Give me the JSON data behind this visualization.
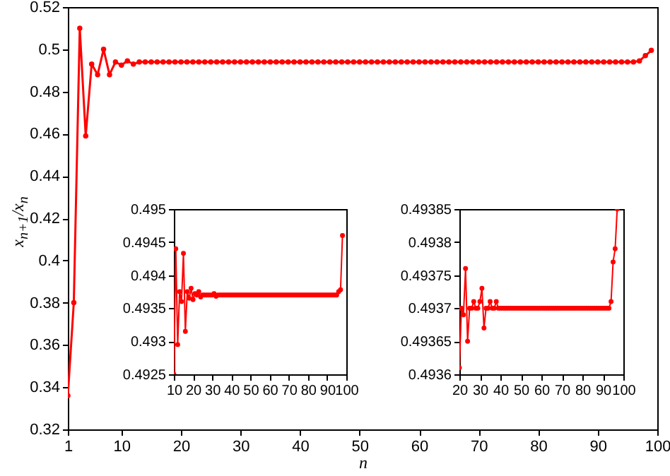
{
  "chart_data": [
    {
      "type": "line",
      "xlabel": "n",
      "ylabel": "x$_{n+1}$/x$_{n}$",
      "xlim": [
        1,
        100
      ],
      "ylim": [
        0.32,
        0.52
      ],
      "xticks": [
        1,
        10,
        20,
        30,
        40,
        50,
        60,
        70,
        80,
        90,
        100
      ],
      "yticks": [
        0.32,
        0.34,
        0.36,
        0.38,
        0.4,
        0.42,
        0.44,
        0.46,
        0.48,
        0.5,
        0.52
      ],
      "grid": false,
      "marker": "circle",
      "series": [
        {
          "color": "#ff0000",
          "x": [
            1,
            2,
            3,
            4,
            5,
            6,
            7,
            8,
            9,
            10,
            11,
            12,
            13,
            14,
            15,
            16,
            17,
            18,
            19,
            20,
            21,
            22,
            23,
            24,
            25,
            26,
            27,
            28,
            29,
            30,
            31,
            32,
            33,
            34,
            35,
            36,
            37,
            38,
            39,
            40,
            41,
            42,
            43,
            44,
            45,
            46,
            47,
            48,
            49,
            50,
            51,
            52,
            53,
            54,
            55,
            56,
            57,
            58,
            59,
            60,
            61,
            62,
            63,
            64,
            65,
            66,
            67,
            68,
            69,
            70,
            71,
            72,
            73,
            74,
            75,
            76,
            77,
            78,
            79,
            80,
            81,
            82,
            83,
            84,
            85,
            86,
            87,
            88,
            89,
            90,
            91,
            92,
            93,
            94,
            95,
            96,
            97,
            98,
            99
          ],
          "values": [
            0.336,
            0.38,
            0.51,
            0.459,
            0.493,
            0.488,
            0.5,
            0.488,
            0.494,
            0.4925,
            0.4945,
            0.493,
            0.494,
            0.494,
            0.494,
            0.494,
            0.494,
            0.494,
            0.494,
            0.494,
            0.494,
            0.494,
            0.494,
            0.494,
            0.494,
            0.494,
            0.494,
            0.494,
            0.494,
            0.494,
            0.494,
            0.494,
            0.494,
            0.494,
            0.494,
            0.494,
            0.494,
            0.494,
            0.494,
            0.494,
            0.494,
            0.494,
            0.494,
            0.494,
            0.494,
            0.494,
            0.494,
            0.494,
            0.494,
            0.494,
            0.494,
            0.494,
            0.494,
            0.494,
            0.494,
            0.494,
            0.494,
            0.494,
            0.494,
            0.494,
            0.494,
            0.494,
            0.494,
            0.494,
            0.494,
            0.494,
            0.494,
            0.494,
            0.494,
            0.494,
            0.494,
            0.494,
            0.494,
            0.494,
            0.494,
            0.494,
            0.494,
            0.494,
            0.494,
            0.494,
            0.494,
            0.494,
            0.494,
            0.494,
            0.494,
            0.494,
            0.494,
            0.494,
            0.494,
            0.494,
            0.494,
            0.494,
            0.494,
            0.494,
            0.494,
            0.494,
            0.4945,
            0.497,
            0.4995
          ]
        }
      ]
    },
    {
      "type": "line",
      "xlim": [
        10,
        100
      ],
      "ylim": [
        0.4925,
        0.495
      ],
      "xticks": [
        10,
        20,
        30,
        40,
        50,
        60,
        70,
        80,
        90,
        100
      ],
      "yticks": [
        0.4925,
        0.493,
        0.4935,
        0.494,
        0.4945,
        0.495
      ],
      "grid": false,
      "marker": "circle",
      "series": [
        {
          "color": "#ff0000",
          "x": [
            10,
            11,
            12,
            13,
            14,
            15,
            16,
            17,
            18,
            19,
            20,
            21,
            22,
            23,
            24,
            25,
            26,
            27,
            28,
            29,
            30,
            31,
            32,
            33,
            34,
            35,
            36,
            37,
            38,
            39,
            40,
            41,
            42,
            43,
            44,
            45,
            46,
            47,
            48,
            49,
            50,
            51,
            52,
            53,
            54,
            55,
            56,
            57,
            58,
            59,
            60,
            61,
            62,
            63,
            64,
            65,
            66,
            67,
            68,
            69,
            70,
            71,
            72,
            73,
            74,
            75,
            76,
            77,
            78,
            79,
            80,
            81,
            82,
            83,
            84,
            85,
            86,
            87,
            88,
            89,
            90,
            91,
            92,
            93,
            94,
            95,
            96,
            97,
            98
          ],
          "values": [
            0.4925,
            0.4944,
            0.49295,
            0.49375,
            0.4936,
            0.49433,
            0.49315,
            0.49375,
            0.49365,
            0.4938,
            0.49363,
            0.49372,
            0.4937,
            0.49375,
            0.49367,
            0.4937,
            0.4937,
            0.4937,
            0.4937,
            0.4937,
            0.4937,
            0.49372,
            0.49368,
            0.4937,
            0.4937,
            0.4937,
            0.4937,
            0.4937,
            0.4937,
            0.4937,
            0.4937,
            0.4937,
            0.4937,
            0.4937,
            0.4937,
            0.4937,
            0.4937,
            0.4937,
            0.4937,
            0.4937,
            0.4937,
            0.4937,
            0.4937,
            0.4937,
            0.4937,
            0.4937,
            0.4937,
            0.4937,
            0.4937,
            0.4937,
            0.4937,
            0.4937,
            0.4937,
            0.4937,
            0.4937,
            0.4937,
            0.4937,
            0.4937,
            0.4937,
            0.4937,
            0.4937,
            0.4937,
            0.4937,
            0.4937,
            0.4937,
            0.4937,
            0.4937,
            0.4937,
            0.4937,
            0.4937,
            0.4937,
            0.4937,
            0.4937,
            0.4937,
            0.4937,
            0.4937,
            0.4937,
            0.4937,
            0.4937,
            0.4937,
            0.4937,
            0.4937,
            0.4937,
            0.4937,
            0.4937,
            0.4937,
            0.49375,
            0.49378,
            0.4946
          ]
        }
      ]
    },
    {
      "type": "line",
      "xlim": [
        20,
        100
      ],
      "ylim": [
        0.4936,
        0.49385
      ],
      "xticks": [
        20,
        30,
        40,
        50,
        60,
        70,
        80,
        90,
        100
      ],
      "yticks": [
        0.4936,
        0.49365,
        0.4937,
        0.49375,
        0.4938,
        0.49385
      ],
      "grid": false,
      "marker": "circle",
      "series": [
        {
          "color": "#ff0000",
          "x": [
            20,
            21,
            22,
            23,
            24,
            25,
            26,
            27,
            28,
            29,
            30,
            31,
            32,
            33,
            34,
            35,
            36,
            37,
            38,
            39,
            40,
            41,
            42,
            43,
            44,
            45,
            46,
            47,
            48,
            49,
            50,
            51,
            52,
            53,
            54,
            55,
            56,
            57,
            58,
            59,
            60,
            61,
            62,
            63,
            64,
            65,
            66,
            67,
            68,
            69,
            70,
            71,
            72,
            73,
            74,
            75,
            76,
            77,
            78,
            79,
            80,
            81,
            82,
            83,
            84,
            85,
            86,
            87,
            88,
            89,
            90,
            91,
            92,
            93,
            94,
            95,
            96,
            97
          ],
          "values": [
            0.49361,
            0.4937,
            0.49369,
            0.49376,
            0.49365,
            0.4937,
            0.4937,
            0.49371,
            0.4937,
            0.4937,
            0.49371,
            0.49373,
            0.49367,
            0.4937,
            0.4937,
            0.49371,
            0.4937,
            0.4937,
            0.49371,
            0.4937,
            0.4937,
            0.4937,
            0.4937,
            0.4937,
            0.4937,
            0.4937,
            0.4937,
            0.4937,
            0.4937,
            0.4937,
            0.4937,
            0.4937,
            0.4937,
            0.4937,
            0.4937,
            0.4937,
            0.4937,
            0.4937,
            0.4937,
            0.4937,
            0.4937,
            0.4937,
            0.4937,
            0.4937,
            0.4937,
            0.4937,
            0.4937,
            0.4937,
            0.4937,
            0.4937,
            0.4937,
            0.4937,
            0.4937,
            0.4937,
            0.4937,
            0.4937,
            0.4937,
            0.4937,
            0.4937,
            0.4937,
            0.4937,
            0.4937,
            0.4937,
            0.4937,
            0.4937,
            0.4937,
            0.4937,
            0.4937,
            0.4937,
            0.4937,
            0.4937,
            0.4937,
            0.4937,
            0.4937,
            0.49371,
            0.49377,
            0.49379,
            0.49385
          ]
        }
      ]
    }
  ]
}
